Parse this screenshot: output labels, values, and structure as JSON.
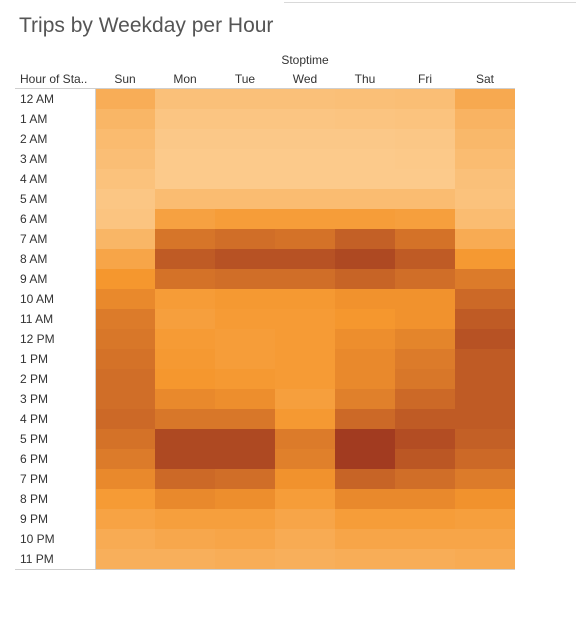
{
  "chart_data": {
    "type": "heatmap",
    "title": "Trips by Weekday per Hour",
    "column_group_label": "Stoptime",
    "row_header_label": "Hour of Sta..",
    "columns": [
      "Sun",
      "Mon",
      "Tue",
      "Wed",
      "Thu",
      "Fri",
      "Sat"
    ],
    "rows": [
      "12 AM",
      "1 AM",
      "2 AM",
      "3 AM",
      "4 AM",
      "5 AM",
      "6 AM",
      "7 AM",
      "8 AM",
      "9 AM",
      "10 AM",
      "11 AM",
      "12 PM",
      "1 PM",
      "2 PM",
      "3 PM",
      "4 PM",
      "5 PM",
      "6 PM",
      "7 PM",
      "8 PM",
      "9 PM",
      "10 PM",
      "11 PM"
    ],
    "color_scale": {
      "low": "#fdd49e",
      "mid": "#f5972e",
      "high": "#a23b20"
    },
    "intensity": [
      [
        0.38,
        0.2,
        0.2,
        0.2,
        0.21,
        0.22,
        0.42
      ],
      [
        0.3,
        0.15,
        0.15,
        0.15,
        0.16,
        0.17,
        0.32
      ],
      [
        0.25,
        0.12,
        0.12,
        0.12,
        0.12,
        0.13,
        0.28
      ],
      [
        0.22,
        0.1,
        0.1,
        0.1,
        0.1,
        0.11,
        0.24
      ],
      [
        0.18,
        0.1,
        0.1,
        0.1,
        0.1,
        0.1,
        0.2
      ],
      [
        0.14,
        0.24,
        0.24,
        0.24,
        0.24,
        0.24,
        0.18
      ],
      [
        0.16,
        0.5,
        0.54,
        0.54,
        0.54,
        0.52,
        0.24
      ],
      [
        0.3,
        0.75,
        0.78,
        0.76,
        0.84,
        0.76,
        0.4
      ],
      [
        0.46,
        0.86,
        0.9,
        0.9,
        0.94,
        0.86,
        0.58
      ],
      [
        0.6,
        0.76,
        0.78,
        0.78,
        0.82,
        0.78,
        0.72
      ],
      [
        0.66,
        0.55,
        0.58,
        0.58,
        0.62,
        0.62,
        0.8
      ],
      [
        0.72,
        0.52,
        0.56,
        0.56,
        0.6,
        0.62,
        0.86
      ],
      [
        0.74,
        0.56,
        0.54,
        0.56,
        0.64,
        0.68,
        0.9
      ],
      [
        0.76,
        0.58,
        0.54,
        0.56,
        0.66,
        0.72,
        0.86
      ],
      [
        0.78,
        0.6,
        0.58,
        0.56,
        0.66,
        0.74,
        0.86
      ],
      [
        0.78,
        0.66,
        0.64,
        0.52,
        0.7,
        0.8,
        0.86
      ],
      [
        0.8,
        0.74,
        0.74,
        0.58,
        0.8,
        0.86,
        0.86
      ],
      [
        0.76,
        0.94,
        0.94,
        0.72,
        1.0,
        0.92,
        0.84
      ],
      [
        0.72,
        0.94,
        0.94,
        0.7,
        1.0,
        0.88,
        0.8
      ],
      [
        0.66,
        0.8,
        0.78,
        0.62,
        0.82,
        0.78,
        0.72
      ],
      [
        0.56,
        0.66,
        0.64,
        0.54,
        0.66,
        0.66,
        0.62
      ],
      [
        0.48,
        0.52,
        0.52,
        0.46,
        0.54,
        0.54,
        0.52
      ],
      [
        0.4,
        0.44,
        0.46,
        0.4,
        0.46,
        0.46,
        0.46
      ],
      [
        0.36,
        0.36,
        0.38,
        0.36,
        0.38,
        0.38,
        0.4
      ]
    ]
  }
}
